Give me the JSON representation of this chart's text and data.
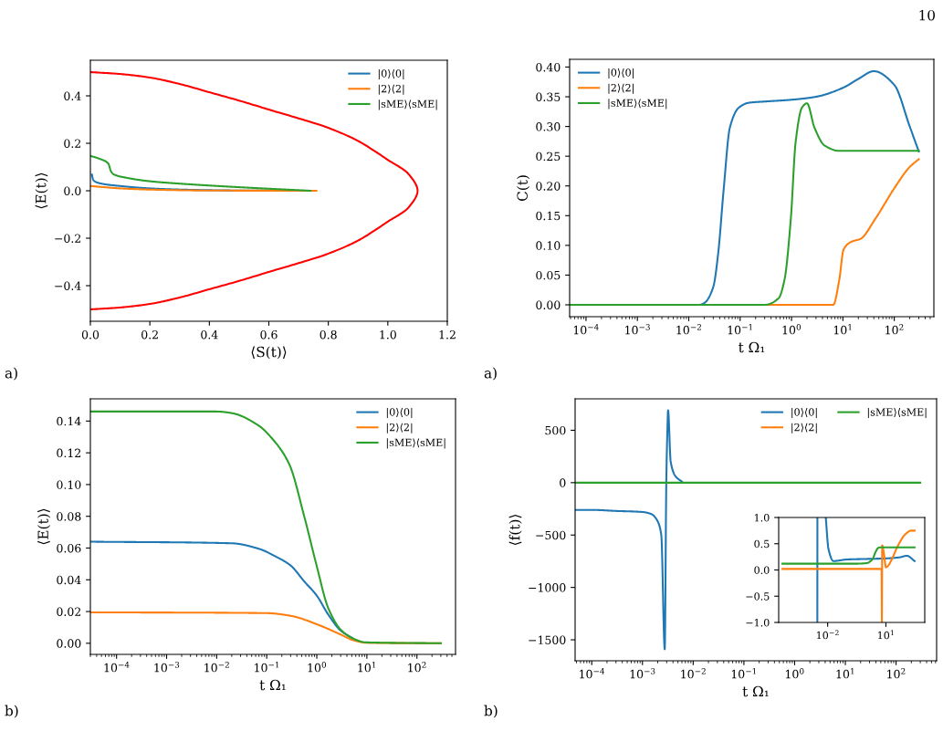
{
  "chart_data": [
    {
      "type": "line",
      "xlabel": "⟨S(t)⟩",
      "ylabel": "⟨E(t)⟩",
      "annotations": [
        "a)"
      ],
      "legend": "top right",
      "xlim": [
        0,
        1.2
      ],
      "xticks": [
        {
          "value": 0,
          "label": "0.0"
        },
        0.2,
        0.4,
        0.6,
        0.8,
        {
          "value": 1,
          "label": "1.0"
        },
        1.2
      ],
      "ylim": [
        -0.55,
        0.55
      ],
      "yticks": [
        {
          "value": -0.4,
          "label": "−0.4"
        },
        {
          "value": -0.2,
          "label": "−0.2"
        },
        {
          "value": 0,
          "label": "0.0"
        },
        0.2,
        0.4
      ],
      "series": [
        {
          "name": "|0⟩⟨0|",
          "color": "#1f77b4",
          "x": [
            0.005,
            0.01,
            0.03,
            0.1,
            0.2,
            0.3,
            0.5,
            0.74
          ],
          "values": [
            0.068,
            0.045,
            0.032,
            0.02,
            0.01,
            0.005,
            0.001,
            0
          ]
        },
        {
          "name": "|2⟩⟨2|",
          "color": "#ff7f0e",
          "x": [
            0,
            0.1,
            0.2,
            0.4,
            0.76
          ],
          "values": [
            0.02,
            0.01,
            0.005,
            0.001,
            0
          ]
        },
        {
          "name": "|sME⟩⟨sME|",
          "color": "#2ca02c",
          "x": [
            0,
            0.03,
            0.06,
            0.07,
            0.08,
            0.12,
            0.2,
            0.3,
            0.5,
            0.74
          ],
          "values": [
            0.147,
            0.135,
            0.115,
            0.08,
            0.068,
            0.055,
            0.04,
            0.03,
            0.015,
            0
          ]
        },
        {
          "color": "#ff0000",
          "x": [
            0,
            0.1,
            0.2,
            0.3,
            0.4,
            0.5,
            0.6,
            0.8,
            0.9,
            0.95,
            1.0,
            1.07,
            1.1,
            1.07,
            1.0,
            0.95,
            0.9,
            0.8,
            0.6,
            0.5,
            0.4,
            0.3,
            0.2,
            0.1,
            0
          ],
          "values": [
            0.5,
            0.492,
            0.477,
            0.45,
            0.415,
            0.38,
            0.342,
            0.265,
            0.21,
            0.172,
            0.13,
            0.07,
            0,
            -0.07,
            -0.13,
            -0.172,
            -0.21,
            -0.265,
            -0.342,
            -0.38,
            -0.415,
            -0.45,
            -0.477,
            -0.492,
            -0.5
          ]
        }
      ]
    },
    {
      "type": "line",
      "xlabel": "t Ω₁",
      "ylabel": "C(t)",
      "annotations": [
        "a)",
        "10"
      ],
      "legend": "top left",
      "log": "x",
      "xlim": [
        4.8e-05,
        590
      ],
      "xticks": [
        {
          "value": 0.0001,
          "label": "10$^{−4}$"
        },
        {
          "value": 0.001,
          "label": "10$^{−3}$"
        },
        {
          "value": 0.01,
          "label": "10$^{−2}$"
        },
        {
          "value": 0.1,
          "label": "10$^{−1}$"
        },
        {
          "value": 1,
          "label": "10$^{0}$"
        },
        {
          "value": 10,
          "label": "10$^{1}$"
        },
        {
          "value": 100,
          "label": "10$^{2}$"
        }
      ],
      "ylim": [
        -0.02,
        0.413
      ],
      "yticks": [
        {
          "value": 0,
          "label": "0.00"
        },
        {
          "value": 0.05,
          "label": "0.05"
        },
        {
          "value": 0.1,
          "label": "0.10"
        },
        {
          "value": 0.15,
          "label": "0.15"
        },
        {
          "value": 0.2,
          "label": "0.20"
        },
        {
          "value": 0.25,
          "label": "0.25"
        },
        {
          "value": 0.3,
          "label": "0.30"
        },
        {
          "value": 0.35,
          "label": "0.35"
        },
        {
          "value": 0.4,
          "label": "0.40"
        }
      ],
      "series": [
        {
          "name": "|0⟩⟨0|",
          "color": "#1f77b4",
          "x": [
            4.8e-05,
            0.016,
            0.02,
            0.03,
            0.037,
            0.048,
            0.063,
            0.095,
            0.15,
            0.3,
            1,
            3,
            10,
            20,
            40,
            100,
            200,
            300
          ],
          "values": [
            0,
            0,
            0.003,
            0.03,
            0.083,
            0.196,
            0.298,
            0.332,
            0.34,
            0.342,
            0.345,
            0.35,
            0.365,
            0.38,
            0.393,
            0.37,
            0.3,
            0.258
          ]
        },
        {
          "name": "|2⟩⟨2|",
          "color": "#ff7f0e",
          "x": [
            4.8e-05,
            6.5,
            8.5,
            10.3,
            14.6,
            22,
            43,
            100,
            200,
            300
          ],
          "values": [
            0,
            0,
            0.042,
            0.093,
            0.106,
            0.111,
            0.145,
            0.196,
            0.232,
            0.245
          ]
        },
        {
          "name": "|sME⟩⟨sME|",
          "color": "#2ca02c",
          "x": [
            4.8e-05,
            0.3,
            0.56,
            0.73,
            0.97,
            1.2,
            1.6,
            2.0,
            2.8,
            4.4,
            8.5,
            300
          ],
          "values": [
            0,
            0,
            0.011,
            0.042,
            0.145,
            0.273,
            0.332,
            0.339,
            0.298,
            0.268,
            0.259,
            0.259
          ]
        }
      ]
    },
    {
      "type": "line",
      "xlabel": "t Ω₁",
      "ylabel": "⟨E(t)⟩",
      "annotations": [
        "b)"
      ],
      "legend": "top right",
      "log": "x",
      "xlim": [
        3e-05,
        590
      ],
      "xticks": [
        {
          "value": 0.0001,
          "label": "10$^{−4}$"
        },
        {
          "value": 0.001,
          "label": "10$^{−3}$"
        },
        {
          "value": 0.01,
          "label": "10$^{−2}$"
        },
        {
          "value": 0.1,
          "label": "10$^{−1}$"
        },
        {
          "value": 1,
          "label": "10$^{0}$"
        },
        {
          "value": 10,
          "label": "10$^{1}$"
        },
        {
          "value": 100,
          "label": "10$^{2}$"
        }
      ],
      "ylim": [
        -0.007,
        0.154
      ],
      "yticks": [
        {
          "value": 0,
          "label": "0.00"
        },
        {
          "value": 0.02,
          "label": "0.02"
        },
        {
          "value": 0.04,
          "label": "0.04"
        },
        {
          "value": 0.06,
          "label": "0.06"
        },
        {
          "value": 0.08,
          "label": "0.08"
        },
        {
          "value": 0.1,
          "label": "0.10"
        },
        {
          "value": 0.12,
          "label": "0.12"
        },
        {
          "value": 0.14,
          "label": "0.14"
        }
      ],
      "series": [
        {
          "name": "|0⟩⟨0|",
          "color": "#1f77b4",
          "x": [
            3e-05,
            0.02,
            0.07,
            0.15,
            0.3,
            0.56,
            1,
            1.7,
            3,
            5.3
          ],
          "values": [
            0.064,
            0.063,
            0.0595,
            0.0547,
            0.049,
            0.039,
            0.03,
            0.018,
            0.008,
            0.003
          ]
        },
        {
          "name": "|2⟩⟨2|",
          "color": "#ff7f0e",
          "x": [
            3e-05,
            0.1,
            0.3,
            1,
            3,
            5.3,
            10,
            300
          ],
          "values": [
            0.0195,
            0.019,
            0.0173,
            0.012,
            0.0055,
            0.002,
            0.0003,
            0
          ]
        },
        {
          "name": "|sME⟩⟨sME|",
          "color": "#2ca02c",
          "x": [
            3e-05,
            0.01,
            0.02,
            0.07,
            0.12,
            0.28,
            0.56,
            0.99,
            1.7,
            3.0,
            5.3,
            9.4,
            300
          ],
          "values": [
            0.146,
            0.146,
            0.145,
            0.137,
            0.13,
            0.113,
            0.08,
            0.049,
            0.022,
            0.0086,
            0.003,
            0.0006,
            0
          ]
        }
      ]
    },
    {
      "type": "line",
      "xlabel": "t Ω₁",
      "ylabel": "⟨f(t)⟩",
      "annotations": [
        "b)"
      ],
      "legend": "top right",
      "log": "x",
      "xlim": [
        4.7e-05,
        630
      ],
      "xticks": [
        {
          "value": 0.0001,
          "label": "10$^{−4}$"
        },
        {
          "value": 0.001,
          "label": "10$^{−3}$"
        },
        {
          "value": 0.01,
          "label": "10$^{−2}$"
        },
        {
          "value": 0.1,
          "label": "10$^{−1}$"
        },
        {
          "value": 1,
          "label": "10$^{0}$"
        },
        {
          "value": 10,
          "label": "10$^{1}$"
        },
        {
          "value": 100,
          "label": "10$^{2}$"
        }
      ],
      "ylim": [
        -1700,
        800
      ],
      "yticks": [
        {
          "value": -1500,
          "label": "−1500"
        },
        {
          "value": -1000,
          "label": "−1000"
        },
        {
          "value": -500,
          "label": "−500"
        },
        0,
        500
      ],
      "series": [
        {
          "name": "|0⟩⟨0|",
          "color": "#1f77b4",
          "x": [
            4.7e-05,
            0.0001,
            0.0003,
            0.001,
            0.0015,
            0.002,
            0.00235,
            0.00275,
            0.00295,
            0.0031,
            0.0032,
            0.0036,
            0.0045,
            0.006
          ],
          "values": [
            -260,
            -260,
            -270,
            -280,
            -300,
            -370,
            -500,
            -1590,
            0,
            500,
            690,
            200,
            60,
            10
          ]
        },
        {
          "name": "|2⟩⟨2|",
          "color": "#ff7f0e"
        },
        {
          "name": "|sME⟩⟨sME|",
          "color": "#2ca02c",
          "x": [
            4.7e-05,
            300
          ],
          "values": [
            0,
            0
          ]
        }
      ]
    },
    {
      "type": "line",
      "log": "x",
      "xlim": [
        3e-05,
        1000
      ],
      "xticks": [
        {
          "value": 0.01,
          "label": "10$^{−2}$"
        },
        {
          "value": 10,
          "label": "10$^{1}$"
        }
      ],
      "ylim": [
        -1,
        1
      ],
      "yticks": [
        {
          "value": -1,
          "label": "−1.0"
        },
        {
          "value": -0.5,
          "label": "−0.5"
        },
        {
          "value": 0,
          "label": "0.0"
        },
        0.5,
        {
          "value": 1,
          "label": "1.0"
        }
      ],
      "series": [
        {
          "color": "#1f77b4",
          "x": [
            0.00294,
            0.00296,
            0.005,
            0.008,
            0.011,
            0.02,
            0.1,
            1,
            10,
            50,
            120,
            300
          ],
          "values": [
            -1.0,
            1.0,
            null,
            1.0,
            0.4,
            0.17,
            0.2,
            0.21,
            0.22,
            0.24,
            0.27,
            0.17
          ]
        },
        {
          "color": "#ff7f0e",
          "x": [
            4.7e-05,
            5.5,
            6.0,
            6.2,
            6.4,
            8,
            10,
            13,
            20,
            40,
            100,
            200,
            300
          ],
          "values": [
            0.02,
            0.02,
            0,
            -1.0,
            0.47,
            0.3,
            0.05,
            0.08,
            0.2,
            0.45,
            0.68,
            0.75,
            0.75
          ]
        },
        {
          "color": "#2ca02c",
          "x": [
            4.7e-05,
            0.3,
            1,
            2,
            3,
            4,
            5,
            300
          ],
          "values": [
            0.12,
            0.12,
            0.13,
            0.2,
            0.35,
            0.42,
            0.43,
            0.43
          ]
        }
      ]
    }
  ]
}
